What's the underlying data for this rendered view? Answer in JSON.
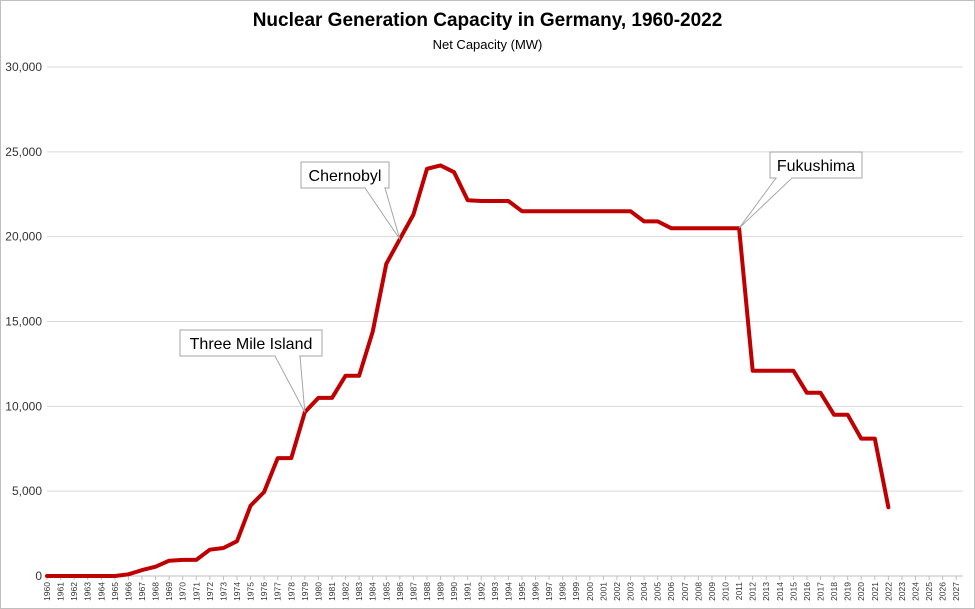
{
  "chart_data": {
    "type": "line",
    "title": "Nuclear Generation Capacity in Germany, 1960-2022",
    "subtitle": "Net Capacity (MW)",
    "xlabel": "",
    "ylabel": "",
    "ylim": [
      0,
      30000
    ],
    "yticks": [
      "0",
      "5,000",
      "10,000",
      "15,000",
      "20,000",
      "25,000",
      "30,000"
    ],
    "x_categories": [
      "1960",
      "1961",
      "1962",
      "1963",
      "1964",
      "1965",
      "1966",
      "1967",
      "1968",
      "1969",
      "1970",
      "1971",
      "1972",
      "1973",
      "1974",
      "1975",
      "1976",
      "1977",
      "1978",
      "1979",
      "1980",
      "1981",
      "1982",
      "1983",
      "1984",
      "1985",
      "1986",
      "1987",
      "1988",
      "1989",
      "1990",
      "1991",
      "1992",
      "1993",
      "1994",
      "1995",
      "1996",
      "1997",
      "1998",
      "1999",
      "2000",
      "2001",
      "2002",
      "2003",
      "2004",
      "2005",
      "2006",
      "2007",
      "2008",
      "2009",
      "2010",
      "2011",
      "2012",
      "2013",
      "2014",
      "2015",
      "2016",
      "2017",
      "2018",
      "2019",
      "2020",
      "2021",
      "2022",
      "2023",
      "2024",
      "2025",
      "2026",
      "2027"
    ],
    "grid": true,
    "series": [
      {
        "color": "#c00000",
        "x": [
          "1960",
          "1961",
          "1962",
          "1963",
          "1964",
          "1965",
          "1966",
          "1967",
          "1968",
          "1969",
          "1970",
          "1971",
          "1972",
          "1973",
          "1974",
          "1975",
          "1976",
          "1977",
          "1978",
          "1979",
          "1980",
          "1981",
          "1982",
          "1983",
          "1984",
          "1985",
          "1986",
          "1987",
          "1988",
          "1989",
          "1990",
          "1991",
          "1992",
          "1993",
          "1994",
          "1995",
          "1996",
          "1997",
          "1998",
          "1999",
          "2000",
          "2001",
          "2002",
          "2003",
          "2004",
          "2005",
          "2006",
          "2007",
          "2008",
          "2009",
          "2010",
          "2011",
          "2012",
          "2013",
          "2014",
          "2015",
          "2016",
          "2017",
          "2018",
          "2019",
          "2020",
          "2021",
          "2022"
        ],
        "values": [
          0,
          0,
          0,
          0,
          0,
          0,
          100,
          350,
          550,
          900,
          950,
          950,
          1550,
          1650,
          2050,
          4150,
          4950,
          6950,
          6950,
          9650,
          10500,
          10500,
          11800,
          11800,
          14400,
          18400,
          19850,
          21300,
          24000,
          24200,
          23800,
          22150,
          22100,
          22100,
          22100,
          21500,
          21500,
          21500,
          21500,
          21500,
          21500,
          21500,
          21500,
          21500,
          20900,
          20900,
          20500,
          20500,
          20500,
          20500,
          20500,
          20500,
          12100,
          12100,
          12100,
          12100,
          10800,
          10800,
          9500,
          9500,
          8100,
          8100,
          4050
        ]
      }
    ],
    "annotations": [
      {
        "text": "Three Mile Island",
        "x": "1979"
      },
      {
        "text": "Chernobyl",
        "x": "1986"
      },
      {
        "text": "Fukushima",
        "x": "2011"
      }
    ]
  }
}
